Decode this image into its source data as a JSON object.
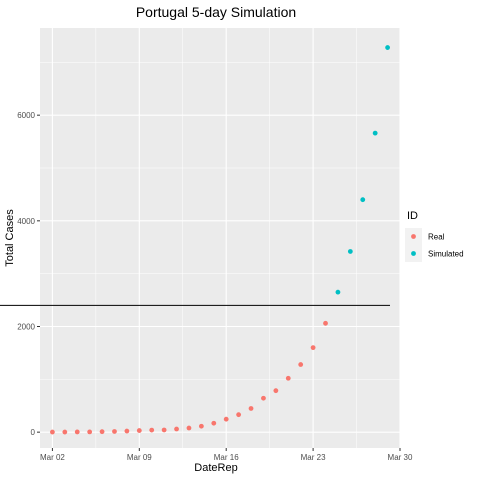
{
  "chart_data": {
    "type": "scatter",
    "title": "Portugal 5-day Simulation",
    "xlabel": "DateRep",
    "ylabel": "Total Cases",
    "x_ticks": [
      {
        "date": "2020-03-02",
        "label": "Mar 02"
      },
      {
        "date": "2020-03-09",
        "label": "Mar 09"
      },
      {
        "date": "2020-03-16",
        "label": "Mar 16"
      },
      {
        "date": "2020-03-23",
        "label": "Mar 23"
      },
      {
        "date": "2020-03-30",
        "label": "Mar 30"
      }
    ],
    "y_ticks": [
      0,
      2000,
      4000,
      6000
    ],
    "xlim": [
      "2020-03-01",
      "2020-03-30"
    ],
    "ylim": [
      -300,
      7650
    ],
    "hline": 2400,
    "grid": true,
    "legend": {
      "title": "ID",
      "position": "right",
      "entries": [
        {
          "name": "Real",
          "color": "#F8766D"
        },
        {
          "name": "Simulated",
          "color": "#00BFC4"
        }
      ]
    },
    "series": [
      {
        "name": "Real",
        "color": "#F8766D",
        "x": [
          "2020-03-02",
          "2020-03-03",
          "2020-03-04",
          "2020-03-05",
          "2020-03-06",
          "2020-03-07",
          "2020-03-08",
          "2020-03-09",
          "2020-03-10",
          "2020-03-11",
          "2020-03-12",
          "2020-03-13",
          "2020-03-14",
          "2020-03-15",
          "2020-03-16",
          "2020-03-17",
          "2020-03-18",
          "2020-03-19",
          "2020-03-20",
          "2020-03-21",
          "2020-03-22",
          "2020-03-23",
          "2020-03-24"
        ],
        "y": [
          2,
          2,
          4,
          5,
          9,
          13,
          21,
          30,
          39,
          41,
          59,
          78,
          112,
          169,
          245,
          331,
          448,
          642,
          785,
          1020,
          1280,
          1600,
          2060
        ]
      },
      {
        "name": "Simulated",
        "color": "#00BFC4",
        "x": [
          "2020-03-25",
          "2020-03-26",
          "2020-03-27",
          "2020-03-28",
          "2020-03-29"
        ],
        "y": [
          2650,
          3420,
          4400,
          5660,
          7280
        ]
      }
    ]
  }
}
